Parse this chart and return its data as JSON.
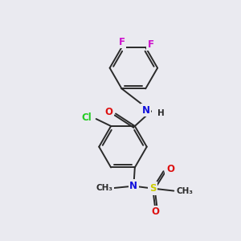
{
  "background_color": "#eaeaf0",
  "bond_color": "#2a2a2a",
  "bond_width": 1.4,
  "atom_colors": {
    "C": "#2a2a2a",
    "H": "#2a2a2a",
    "N": "#1010dd",
    "O": "#dd1010",
    "F": "#cc10cc",
    "Cl": "#22cc22",
    "S": "#cccc00"
  },
  "font_size": 8.5,
  "fig_width": 3.0,
  "fig_height": 3.0,
  "dpi": 100
}
